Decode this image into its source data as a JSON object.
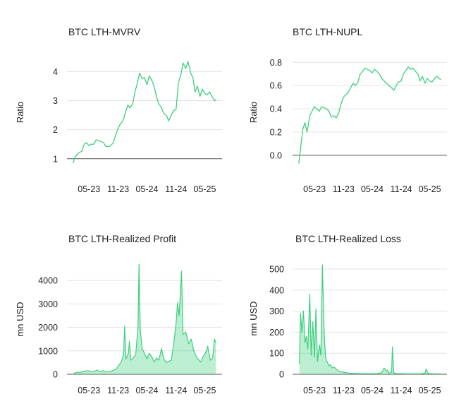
{
  "colors": {
    "series": "#3ecf7f",
    "grid": "#e3e3e3",
    "axis": "#555555",
    "text": "#222222"
  },
  "chart_data": [
    {
      "type": "line",
      "title": "BTC LTH-MVRV",
      "ylabel": "Ratio",
      "ylim": [
        0.8,
        4.4
      ],
      "yticks": [
        1,
        2,
        3,
        4
      ],
      "ytick_labels": [
        "1",
        "2",
        "3",
        "4"
      ],
      "baseline": 1,
      "xlim": [
        "2023-01-21",
        "2025-07-10"
      ],
      "xticks": [
        "2023-05-01",
        "2023-11-01",
        "2024-05-01",
        "2024-11-01",
        "2025-05-01"
      ],
      "xtick_labels": [
        "05-23",
        "11-23",
        "05-24",
        "11-24",
        "05-25"
      ],
      "grid": true,
      "series": [
        {
          "x": [
            "2023-01-21",
            "2023-02-01",
            "2023-02-15",
            "2023-03-01",
            "2023-03-15",
            "2023-04-01",
            "2023-04-15",
            "2023-05-01",
            "2023-05-15",
            "2023-06-01",
            "2023-06-15",
            "2023-07-01",
            "2023-07-15",
            "2023-08-01",
            "2023-08-15",
            "2023-09-01",
            "2023-09-15",
            "2023-10-01",
            "2023-10-15",
            "2023-11-01",
            "2023-11-15",
            "2023-12-01",
            "2023-12-15",
            "2024-01-01",
            "2024-01-15",
            "2024-02-01",
            "2024-02-15",
            "2024-03-01",
            "2024-03-15",
            "2024-04-01",
            "2024-04-15",
            "2024-05-01",
            "2024-05-15",
            "2024-06-01",
            "2024-06-15",
            "2024-07-01",
            "2024-07-15",
            "2024-08-01",
            "2024-08-15",
            "2024-09-01",
            "2024-09-15",
            "2024-10-01",
            "2024-10-15",
            "2024-11-01",
            "2024-11-15",
            "2024-12-01",
            "2024-12-15",
            "2025-01-01",
            "2025-01-15",
            "2025-02-01",
            "2025-02-15",
            "2025-03-01",
            "2025-03-15",
            "2025-04-01",
            "2025-04-15",
            "2025-05-01",
            "2025-05-15",
            "2025-06-01",
            "2025-06-15",
            "2025-07-01",
            "2025-07-10"
          ],
          "values": [
            0.85,
            1.05,
            1.15,
            1.22,
            1.25,
            1.5,
            1.55,
            1.45,
            1.5,
            1.5,
            1.65,
            1.62,
            1.6,
            1.55,
            1.42,
            1.42,
            1.45,
            1.55,
            1.8,
            2.05,
            2.2,
            2.3,
            2.55,
            2.85,
            2.75,
            2.9,
            3.3,
            3.6,
            3.95,
            3.75,
            3.8,
            3.55,
            3.85,
            3.7,
            3.5,
            3.1,
            2.9,
            2.75,
            2.55,
            2.5,
            2.3,
            2.5,
            2.65,
            2.7,
            3.6,
            3.9,
            4.3,
            4.1,
            4.35,
            3.95,
            3.8,
            3.3,
            3.5,
            3.15,
            3.4,
            3.25,
            3.2,
            3.3,
            3.15,
            3.0,
            3.05
          ]
        }
      ]
    },
    {
      "type": "line",
      "title": "BTC LTH-NUPL",
      "ylabel": "Ratio",
      "ylim": [
        -0.08,
        0.82
      ],
      "yticks": [
        0.0,
        0.2,
        0.4,
        0.6,
        0.8
      ],
      "ytick_labels": [
        "0.0",
        "0.2",
        "0.4",
        "0.6",
        "0.8"
      ],
      "baseline": 0,
      "xlim": [
        "2023-01-21",
        "2025-07-10"
      ],
      "xticks": [
        "2023-05-01",
        "2023-11-01",
        "2024-05-01",
        "2024-11-01",
        "2025-05-01"
      ],
      "xtick_labels": [
        "05-23",
        "11-23",
        "05-24",
        "11-24",
        "05-25"
      ],
      "grid": true,
      "series": [
        {
          "x": [
            "2023-01-21",
            "2023-02-01",
            "2023-02-15",
            "2023-03-01",
            "2023-03-15",
            "2023-04-01",
            "2023-04-15",
            "2023-05-01",
            "2023-05-15",
            "2023-06-01",
            "2023-06-15",
            "2023-07-01",
            "2023-07-15",
            "2023-08-01",
            "2023-08-15",
            "2023-09-01",
            "2023-09-15",
            "2023-10-01",
            "2023-10-15",
            "2023-11-01",
            "2023-11-15",
            "2023-12-01",
            "2023-12-15",
            "2024-01-01",
            "2024-01-15",
            "2024-02-01",
            "2024-02-15",
            "2024-03-01",
            "2024-03-15",
            "2024-04-01",
            "2024-04-15",
            "2024-05-01",
            "2024-05-15",
            "2024-06-01",
            "2024-06-15",
            "2024-07-01",
            "2024-07-15",
            "2024-08-01",
            "2024-08-15",
            "2024-09-01",
            "2024-09-15",
            "2024-10-01",
            "2024-10-15",
            "2024-11-01",
            "2024-11-15",
            "2024-12-01",
            "2024-12-15",
            "2025-01-01",
            "2025-01-15",
            "2025-02-01",
            "2025-02-15",
            "2025-03-01",
            "2025-03-15",
            "2025-04-01",
            "2025-04-15",
            "2025-05-01",
            "2025-05-15",
            "2025-06-01",
            "2025-06-15",
            "2025-07-01",
            "2025-07-10"
          ],
          "values": [
            -0.07,
            0.05,
            0.22,
            0.28,
            0.2,
            0.34,
            0.38,
            0.42,
            0.4,
            0.38,
            0.42,
            0.41,
            0.4,
            0.38,
            0.33,
            0.34,
            0.32,
            0.36,
            0.44,
            0.5,
            0.52,
            0.54,
            0.58,
            0.62,
            0.6,
            0.63,
            0.7,
            0.72,
            0.75,
            0.74,
            0.73,
            0.71,
            0.74,
            0.72,
            0.7,
            0.66,
            0.64,
            0.62,
            0.6,
            0.58,
            0.56,
            0.6,
            0.63,
            0.64,
            0.7,
            0.73,
            0.76,
            0.74,
            0.75,
            0.72,
            0.7,
            0.64,
            0.68,
            0.62,
            0.66,
            0.64,
            0.63,
            0.66,
            0.68,
            0.66,
            0.65
          ]
        }
      ]
    },
    {
      "type": "area",
      "title": "BTC LTH-Realized Profit",
      "ylabel": "mn USD",
      "ylim": [
        0,
        4700
      ],
      "yticks": [
        0,
        1000,
        2000,
        3000,
        4000
      ],
      "ytick_labels": [
        "0",
        "1000",
        "2000",
        "3000",
        "4000"
      ],
      "baseline": 0,
      "xlim": [
        "2023-01-21",
        "2025-07-10"
      ],
      "xticks": [
        "2023-05-01",
        "2023-11-01",
        "2024-05-01",
        "2024-11-01",
        "2025-05-01"
      ],
      "xtick_labels": [
        "05-23",
        "11-23",
        "05-24",
        "11-24",
        "05-25"
      ],
      "grid": true,
      "series": [
        {
          "x": [
            "2023-01-25",
            "2023-02-15",
            "2023-03-10",
            "2023-04-01",
            "2023-04-20",
            "2023-05-10",
            "2023-06-01",
            "2023-06-20",
            "2023-07-10",
            "2023-08-01",
            "2023-08-20",
            "2023-09-10",
            "2023-10-01",
            "2023-10-20",
            "2023-11-05",
            "2023-11-20",
            "2023-12-05",
            "2023-12-12",
            "2023-12-20",
            "2024-01-05",
            "2024-01-11",
            "2024-01-20",
            "2024-02-05",
            "2024-02-20",
            "2024-03-05",
            "2024-03-12",
            "2024-03-20",
            "2024-04-01",
            "2024-04-15",
            "2024-05-01",
            "2024-05-15",
            "2024-06-01",
            "2024-06-15",
            "2024-07-01",
            "2024-07-15",
            "2024-08-01",
            "2024-08-15",
            "2024-09-01",
            "2024-09-15",
            "2024-10-01",
            "2024-10-15",
            "2024-11-01",
            "2024-11-10",
            "2024-11-20",
            "2024-12-05",
            "2024-12-15",
            "2025-01-01",
            "2025-01-20",
            "2025-02-05",
            "2025-02-20",
            "2025-03-05",
            "2025-03-20",
            "2025-04-05",
            "2025-04-20",
            "2025-05-05",
            "2025-05-20",
            "2025-06-05",
            "2025-06-20",
            "2025-07-01",
            "2025-07-10"
          ],
          "values": [
            40,
            80,
            90,
            120,
            160,
            130,
            110,
            180,
            120,
            150,
            100,
            120,
            170,
            230,
            380,
            520,
            820,
            2050,
            650,
            900,
            1400,
            600,
            700,
            850,
            2000,
            4700,
            1900,
            1100,
            900,
            650,
            900,
            750,
            520,
            700,
            600,
            1100,
            650,
            500,
            550,
            600,
            1200,
            2200,
            3050,
            2500,
            4400,
            1700,
            1800,
            1300,
            1500,
            1000,
            800,
            650,
            520,
            750,
            900,
            1200,
            600,
            700,
            1500,
            1350
          ]
        }
      ]
    },
    {
      "type": "area",
      "title": "BTC LTH-Realized Loss",
      "ylabel": "mn USD",
      "ylim": [
        0,
        530
      ],
      "yticks": [
        0,
        100,
        200,
        300,
        400,
        500
      ],
      "ytick_labels": [
        "0",
        "100",
        "200",
        "300",
        "400",
        "500"
      ],
      "baseline": 0,
      "xlim": [
        "2023-01-21",
        "2025-07-10"
      ],
      "xticks": [
        "2023-05-01",
        "2023-11-01",
        "2024-05-01",
        "2024-11-01",
        "2025-05-01"
      ],
      "xtick_labels": [
        "05-23",
        "11-23",
        "05-24",
        "11-24",
        "05-25"
      ],
      "grid": true,
      "series": [
        {
          "x": [
            "2023-01-25",
            "2023-02-01",
            "2023-02-10",
            "2023-02-20",
            "2023-03-01",
            "2023-03-10",
            "2023-03-20",
            "2023-04-01",
            "2023-04-10",
            "2023-04-20",
            "2023-05-01",
            "2023-05-10",
            "2023-05-20",
            "2023-06-01",
            "2023-06-10",
            "2023-06-20",
            "2023-07-01",
            "2023-07-10",
            "2023-07-20",
            "2023-08-01",
            "2023-08-10",
            "2023-08-20",
            "2023-09-01",
            "2023-09-15",
            "2023-10-01",
            "2023-10-15",
            "2023-11-01",
            "2023-11-15",
            "2023-12-01",
            "2023-12-15",
            "2024-01-01",
            "2024-02-01",
            "2024-03-01",
            "2024-04-01",
            "2024-05-01",
            "2024-06-01",
            "2024-07-01",
            "2024-07-15",
            "2024-08-01",
            "2024-08-05",
            "2024-08-15",
            "2024-09-01",
            "2024-09-06",
            "2024-09-15",
            "2024-10-01",
            "2024-11-01",
            "2024-12-01",
            "2025-01-01",
            "2025-02-01",
            "2025-03-01",
            "2025-04-01",
            "2025-04-08",
            "2025-04-20",
            "2025-05-01",
            "2025-06-01",
            "2025-07-01",
            "2025-07-10"
          ],
          "values": [
            50,
            290,
            200,
            300,
            150,
            180,
            120,
            380,
            90,
            250,
            80,
            310,
            60,
            140,
            90,
            520,
            200,
            80,
            60,
            40,
            45,
            30,
            35,
            25,
            15,
            12,
            10,
            8,
            6,
            5,
            4,
            3,
            3,
            3,
            3,
            3,
            8,
            30,
            15,
            20,
            5,
            10,
            130,
            8,
            3,
            3,
            2,
            2,
            2,
            2,
            5,
            25,
            5,
            3,
            2,
            2,
            2
          ]
        }
      ]
    }
  ]
}
